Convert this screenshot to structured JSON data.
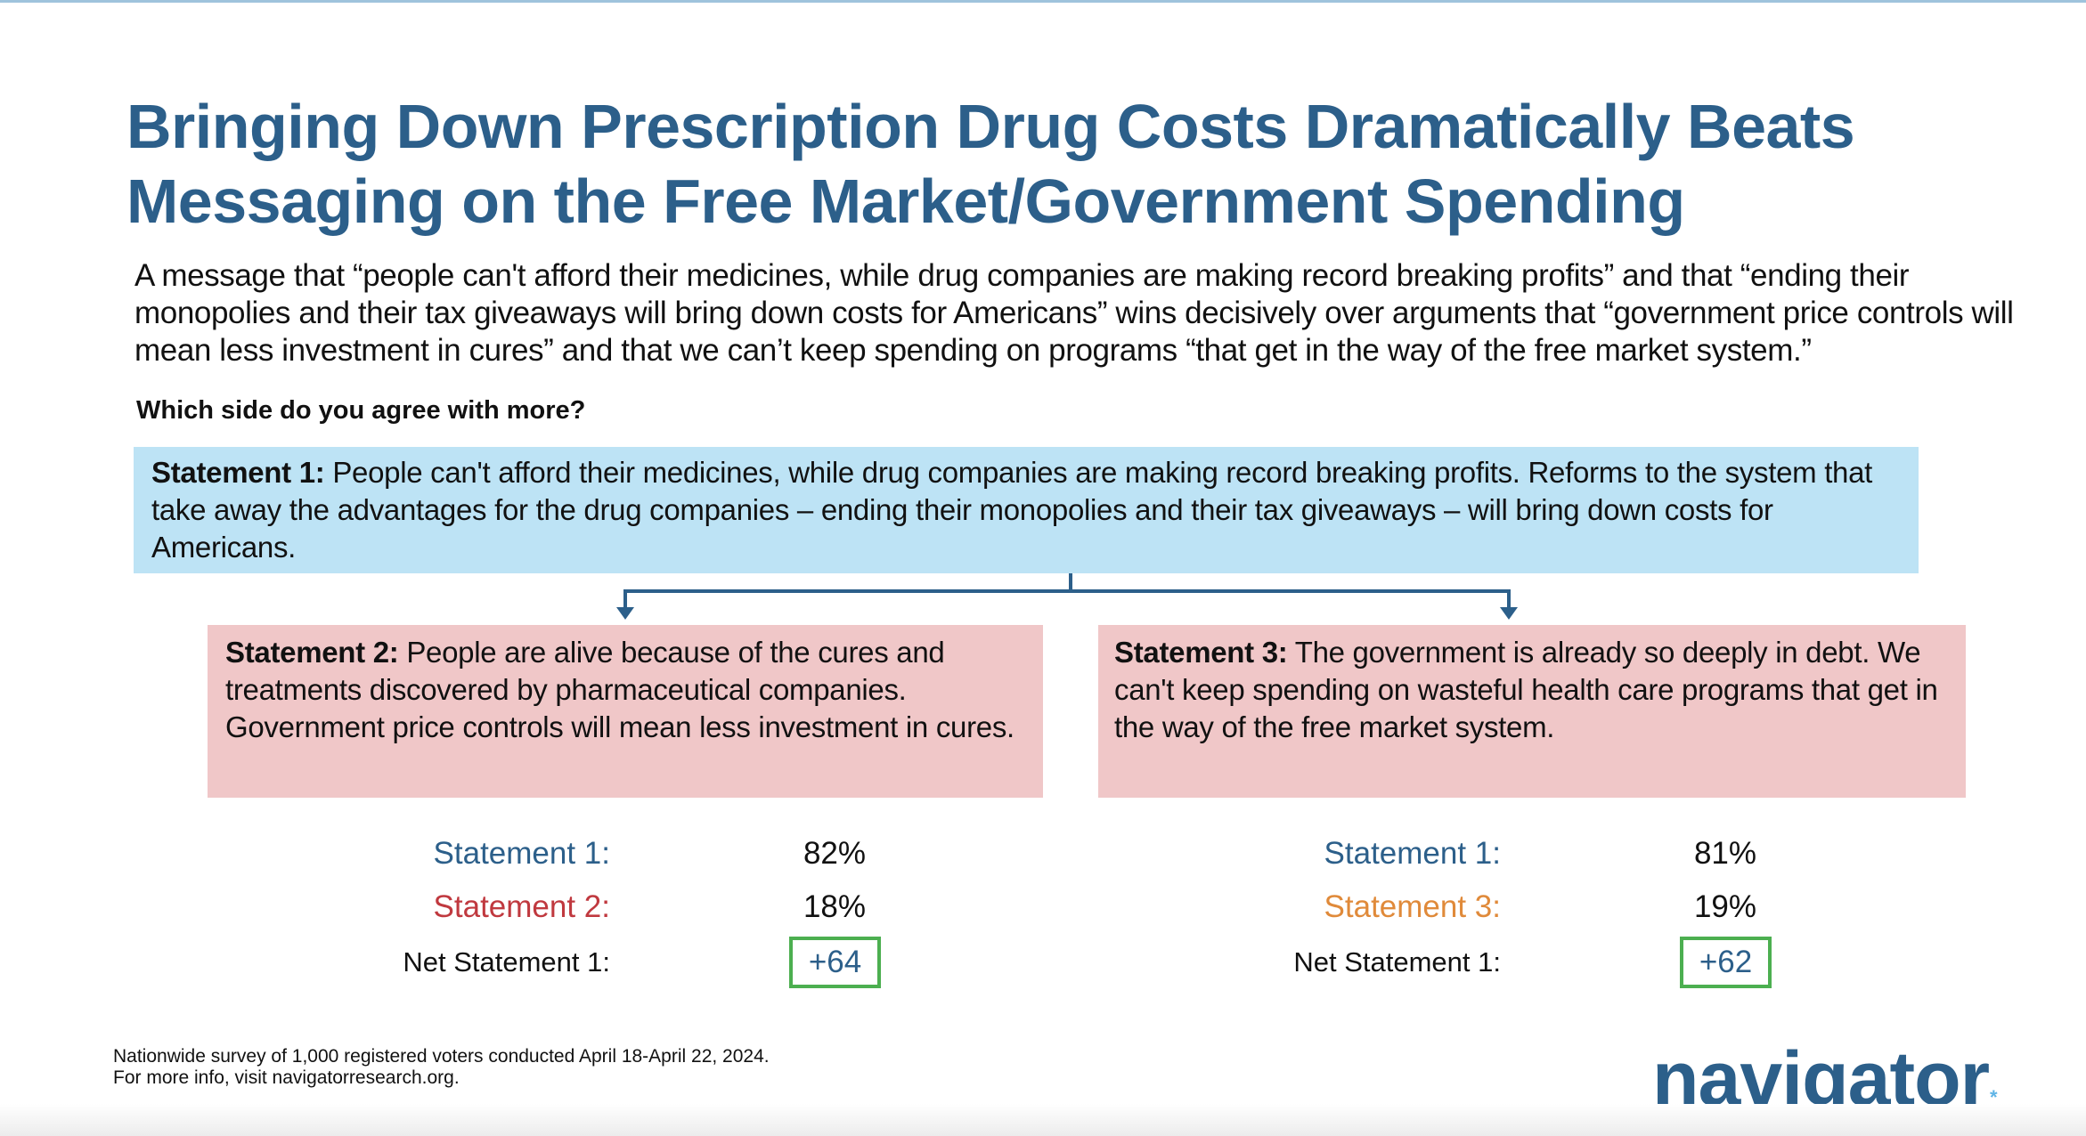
{
  "title": {
    "line1": "Bringing Down Prescription Drug Costs Dramatically Beats",
    "line2": "Messaging on the Free Market/Government Spending"
  },
  "subtitle": "A message that “people can't afford their medicines, while drug companies are making record breaking profits” and that “ending their monopolies and their tax giveaways will bring down costs for Americans” wins decisively over arguments that “government price controls will mean less investment in cures” and that we can’t keep spending on programs “that get in the way of the free market system.”",
  "question": "Which side do you agree with more?",
  "statements": {
    "s1": {
      "label": "Statement 1:",
      "text": " People can't afford their medicines, while drug companies are making record breaking profits. Reforms to the system that take away the advantages for the drug companies – ending their monopolies and their tax giveaways – will bring down costs for Americans."
    },
    "s2": {
      "label": "Statement 2:",
      "text": " People are alive because of the cures and treatments discovered by pharmaceutical companies. Government price controls will mean less investment in cures."
    },
    "s3": {
      "label": "Statement 3:",
      "text": " The government is already so deeply in debt. We can't keep spending on wasteful health care programs that get in the way of the free market system."
    }
  },
  "results": [
    {
      "row1_label": "Statement 1:",
      "row1_value": "82%",
      "row2_label": "Statement 2:",
      "row2_value": "18%",
      "net_label": "Net Statement 1:",
      "net_value": "+64"
    },
    {
      "row1_label": "Statement 1:",
      "row1_value": "81%",
      "row2_label": "Statement 3:",
      "row2_value": "19%",
      "net_label": "Net Statement 1:",
      "net_value": "+62"
    }
  ],
  "footnote": {
    "line1": "Nationwide survey of 1,000 registered voters conducted April 18-April 22, 2024.",
    "line2": "For more info, visit navigatorresearch.org."
  },
  "logo": {
    "text": "navigator",
    "mark": "*"
  },
  "colors": {
    "title_blue": "#2c5f8a",
    "statement1_fill": "#bde3f5",
    "opposing_fill": "#f0c7c8",
    "statement2_red": "#c0393f",
    "statement3_orange": "#e08a3a",
    "net_border_green": "#4caf50",
    "logo_accent": "#5fb4e6"
  }
}
